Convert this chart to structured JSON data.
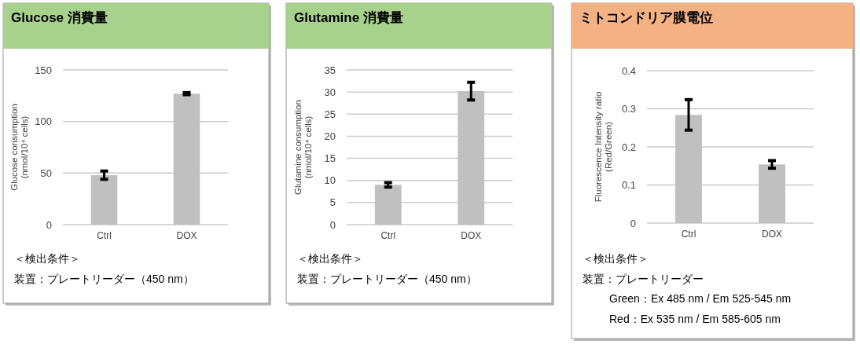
{
  "chart_data": [
    {
      "type": "bar",
      "title": "Glucose 消費量",
      "ylabel": "Glucose consumption\n(nmol/10⁴ cells)",
      "categories": [
        "Ctrl",
        "DOX"
      ],
      "values": [
        48,
        127
      ],
      "errors": [
        4,
        1
      ],
      "color": "#c0c0c0",
      "ylim": [
        0,
        150
      ],
      "yticks": [
        0,
        50,
        100,
        150
      ],
      "grid": "y",
      "annotations": [
        "＜検出条件＞",
        "装置：プレートリーダー（450 nm）"
      ]
    },
    {
      "type": "bar",
      "title": "Glutamine 消費量",
      "ylabel": "Glutamine consumption\n(nmol/10⁴ cells)",
      "categories": [
        "Ctrl",
        "DOX"
      ],
      "values": [
        9,
        30.2
      ],
      "errors": [
        0.5,
        2
      ],
      "color": "#c0c0c0",
      "ylim": [
        0,
        35
      ],
      "yticks": [
        0,
        5,
        10,
        15,
        20,
        25,
        30,
        35
      ],
      "grid": "y",
      "annotations": [
        "＜検出条件＞",
        "装置：プレートリーダー（450 nm）"
      ]
    },
    {
      "type": "bar",
      "title": "ミトコンドリア膜電位",
      "ylabel": "Fluorescence Intensity ratio\n(Red/Green)",
      "categories": [
        "Ctrl",
        "DOX"
      ],
      "values": [
        0.284,
        0.154
      ],
      "errors": [
        0.04,
        0.01
      ],
      "color": "#c0c0c0",
      "ylim": [
        0,
        0.4
      ],
      "yticks": [
        0,
        0.1,
        0.2,
        0.3,
        0.4
      ],
      "grid": "y",
      "annotations": [
        "＜検出条件＞",
        "装置：プレートリーダー",
        "Green：Ex 485 nm / Em 525-545 nm",
        "Red：Ex 535 nm / Em 585-605 nm"
      ]
    }
  ]
}
